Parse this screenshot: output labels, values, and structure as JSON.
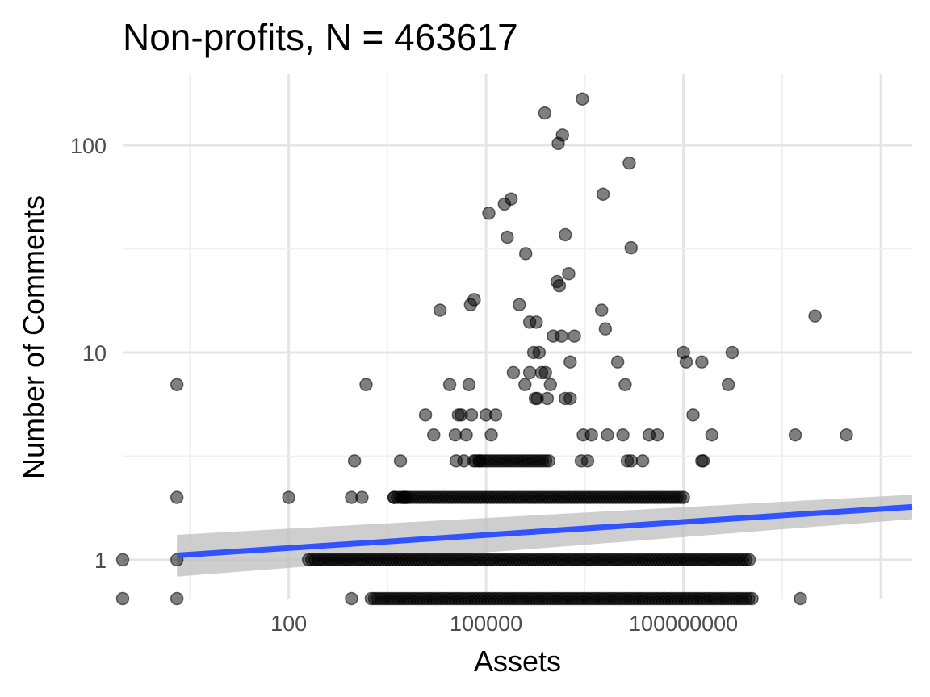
{
  "chart_data": {
    "type": "scatter",
    "title": "Non-profits, N = 463617",
    "xlabel": "Assets",
    "ylabel": "Number of Comments",
    "x_scale": "log10",
    "y_scale": "log10",
    "x_ticks": [
      {
        "value": 100,
        "label": "100"
      },
      {
        "value": 100000,
        "label": "100000"
      },
      {
        "value": 100000000,
        "label": "100000000"
      }
    ],
    "y_ticks": [
      {
        "value": 1,
        "label": "1"
      },
      {
        "value": 10,
        "label": "10"
      },
      {
        "value": 100,
        "label": "100"
      }
    ],
    "xlim": [
      0.3,
      300000000000.0
    ],
    "ylim": [
      0.65,
      220
    ],
    "grid": true,
    "legend": "none",
    "point_color": "#000000",
    "point_opacity": 0.5,
    "trend_color": "#3152ff",
    "ribbon_color": "#bebebe",
    "points": [
      {
        "x": 2,
        "y": 7
      },
      {
        "x": 2,
        "y": 2
      },
      {
        "x": 2,
        "y": 1
      },
      {
        "x": 0.3,
        "y": 1
      },
      {
        "x": 0.3,
        "y": 0.65
      },
      {
        "x": 2,
        "y": 0.65
      },
      {
        "x": 100,
        "y": 2
      },
      {
        "x": 1000,
        "y": 3
      },
      {
        "x": 900,
        "y": 2
      },
      {
        "x": 1300,
        "y": 2
      },
      {
        "x": 1500,
        "y": 7
      },
      {
        "x": 900,
        "y": 0.65
      },
      {
        "x": 5000,
        "y": 3
      },
      {
        "x": 4000,
        "y": 2
      },
      {
        "x": 5500,
        "y": 2
      },
      {
        "x": 6000,
        "y": 2
      },
      {
        "x": 12000,
        "y": 5
      },
      {
        "x": 16000,
        "y": 4
      },
      {
        "x": 20000,
        "y": 16
      },
      {
        "x": 28000,
        "y": 7
      },
      {
        "x": 34000,
        "y": 4
      },
      {
        "x": 35000,
        "y": 3
      },
      {
        "x": 38000,
        "y": 5
      },
      {
        "x": 42000,
        "y": 5
      },
      {
        "x": 46000,
        "y": 3
      },
      {
        "x": 55000,
        "y": 7
      },
      {
        "x": 58000,
        "y": 17
      },
      {
        "x": 66000,
        "y": 18
      },
      {
        "x": 50000,
        "y": 4
      },
      {
        "x": 60000,
        "y": 5
      },
      {
        "x": 65000,
        "y": 3
      },
      {
        "x": 80000,
        "y": 3
      },
      {
        "x": 110000,
        "y": 47
      },
      {
        "x": 100000,
        "y": 5
      },
      {
        "x": 120000,
        "y": 4
      },
      {
        "x": 140000,
        "y": 5
      },
      {
        "x": 190000,
        "y": 52
      },
      {
        "x": 240000,
        "y": 55
      },
      {
        "x": 210000,
        "y": 36
      },
      {
        "x": 260000,
        "y": 8
      },
      {
        "x": 320000,
        "y": 17
      },
      {
        "x": 400000,
        "y": 30
      },
      {
        "x": 460000,
        "y": 14
      },
      {
        "x": 390000,
        "y": 7
      },
      {
        "x": 460000,
        "y": 8
      },
      {
        "x": 580000,
        "y": 14
      },
      {
        "x": 530000,
        "y": 10
      },
      {
        "x": 640000,
        "y": 10
      },
      {
        "x": 700000,
        "y": 8
      },
      {
        "x": 560000,
        "y": 6
      },
      {
        "x": 600000,
        "y": 6
      },
      {
        "x": 800000,
        "y": 8
      },
      {
        "x": 850000,
        "y": 6
      },
      {
        "x": 950000,
        "y": 7
      },
      {
        "x": 780000,
        "y": 143
      },
      {
        "x": 1200000,
        "y": 22
      },
      {
        "x": 1300000,
        "y": 21
      },
      {
        "x": 1400000,
        "y": 12
      },
      {
        "x": 1050000,
        "y": 12
      },
      {
        "x": 1250000,
        "y": 102
      },
      {
        "x": 1450000,
        "y": 112
      },
      {
        "x": 1600000,
        "y": 37
      },
      {
        "x": 1800000,
        "y": 24
      },
      {
        "x": 1900000,
        "y": 9
      },
      {
        "x": 2200000,
        "y": 12
      },
      {
        "x": 1600000,
        "y": 6
      },
      {
        "x": 1900000,
        "y": 6
      },
      {
        "x": 2900000,
        "y": 167
      },
      {
        "x": 3000000,
        "y": 4
      },
      {
        "x": 4000000,
        "y": 4
      },
      {
        "x": 2800000,
        "y": 3
      },
      {
        "x": 3500000,
        "y": 3
      },
      {
        "x": 6000000,
        "y": 58
      },
      {
        "x": 6500000,
        "y": 13
      },
      {
        "x": 5700000,
        "y": 16
      },
      {
        "x": 7000000,
        "y": 4
      },
      {
        "x": 10000000,
        "y": 9
      },
      {
        "x": 12000000,
        "y": 4
      },
      {
        "x": 14000000,
        "y": 3
      },
      {
        "x": 16000000,
        "y": 3
      },
      {
        "x": 13000000,
        "y": 7
      },
      {
        "x": 15000000,
        "y": 82
      },
      {
        "x": 16000000,
        "y": 32
      },
      {
        "x": 24000000,
        "y": 3
      },
      {
        "x": 30000000,
        "y": 4
      },
      {
        "x": 40000000,
        "y": 4
      },
      {
        "x": 100000000,
        "y": 10
      },
      {
        "x": 110000000,
        "y": 9
      },
      {
        "x": 140000000,
        "y": 5
      },
      {
        "x": 190000000,
        "y": 3
      },
      {
        "x": 200000000,
        "y": 3
      },
      {
        "x": 190000000,
        "y": 9
      },
      {
        "x": 270000000,
        "y": 4
      },
      {
        "x": 480000000,
        "y": 7
      },
      {
        "x": 550000000,
        "y": 10
      },
      {
        "x": 5000000000.0,
        "y": 4
      },
      {
        "x": 10000000000.0,
        "y": 15
      },
      {
        "x": 30000000000.0,
        "y": 4
      },
      {
        "x": 6000000000.0,
        "y": 0.65
      }
    ],
    "dense_rows": [
      {
        "y": 3,
        "x_from": 70000,
        "x_to": 900000
      },
      {
        "y": 2,
        "x_from": 4000,
        "x_to": 100000000
      },
      {
        "y": 1,
        "x_from": 200,
        "x_to": 1000000000
      },
      {
        "y": 0.65,
        "x_from": 1800,
        "x_to": 1100000000
      }
    ],
    "trend": {
      "x_from": 2,
      "x_to": 300000000000.0,
      "y_from": 1.05,
      "y_to": 1.8
    },
    "ribbon": {
      "lower_from": 0.83,
      "upper_from": 1.32,
      "lower_to": 1.57,
      "upper_to": 2.06
    }
  }
}
